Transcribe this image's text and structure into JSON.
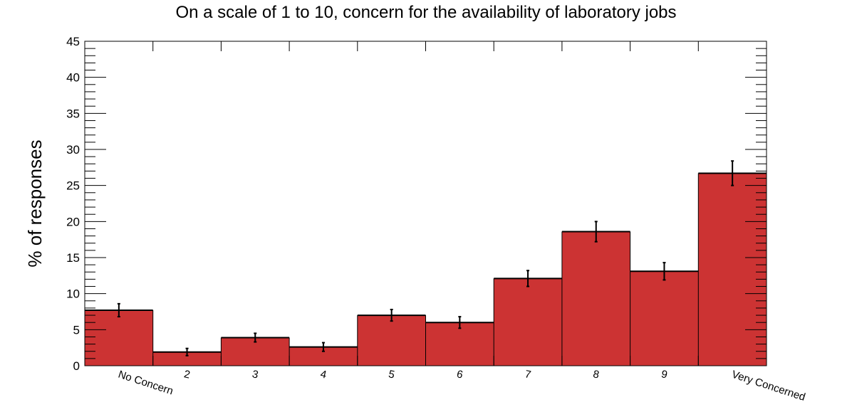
{
  "chart_data": {
    "type": "bar",
    "title": "On a scale of 1 to 10, concern for the availability of laboratory jobs",
    "xlabel": "",
    "ylabel": "% of responses",
    "categories": [
      "No Concern",
      "2",
      "3",
      "4",
      "5",
      "6",
      "7",
      "8",
      "9",
      "Very Concerned"
    ],
    "values": [
      7.7,
      1.9,
      3.9,
      2.6,
      7.0,
      6.0,
      12.1,
      18.6,
      13.1,
      26.7
    ],
    "errors": [
      0.9,
      0.5,
      0.6,
      0.6,
      0.8,
      0.8,
      1.1,
      1.4,
      1.2,
      1.7
    ],
    "ylim": [
      0,
      45
    ],
    "yticks": [
      "0",
      "5",
      "10",
      "15",
      "20",
      "25",
      "30",
      "35",
      "40",
      "45"
    ],
    "grid": false,
    "bar_color": "#cc3333",
    "line_color": "#000000"
  }
}
